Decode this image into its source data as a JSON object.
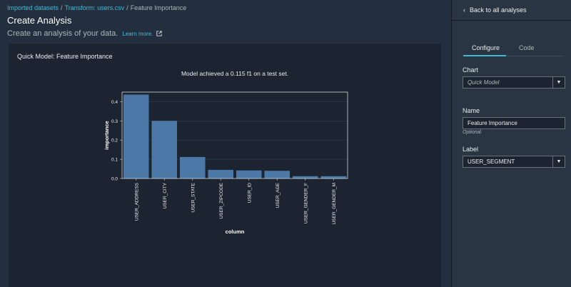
{
  "breadcrumb": {
    "items": [
      "Imported datasets",
      "Transform: users.csv",
      "Feature Importance"
    ],
    "separator": "/"
  },
  "header": {
    "title": "Create Analysis",
    "subtitle": "Create an analysis of your data.",
    "learn_more": "Learn more."
  },
  "panel": {
    "title": "Quick Model: Feature Importance"
  },
  "chart_data": {
    "type": "bar",
    "title": "Model achieved a 0.115 f1 on a test set.",
    "xlabel": "column",
    "ylabel": "importance",
    "categories": [
      "USER_ADDRESS",
      "USER_CITY",
      "USER_STATE",
      "USER_ZIPCODE",
      "USER_ID",
      "USER_AGE",
      "USER_GENDER_F",
      "USER_GENDER_M"
    ],
    "values": [
      0.437,
      0.3,
      0.112,
      0.045,
      0.042,
      0.04,
      0.012,
      0.012
    ],
    "yticks": [
      "0.0",
      "0.1",
      "0.2",
      "0.3",
      "0.4"
    ],
    "ylim": [
      0,
      0.45
    ],
    "bar_color": "#4c78a8",
    "grid": true
  },
  "sidebar": {
    "back_label": "Back to all analyses",
    "tabs": [
      {
        "label": "Configure",
        "active": true
      },
      {
        "label": "Code",
        "active": false
      }
    ],
    "chart_label": "Chart",
    "chart_value": "Quick Model",
    "name_label": "Name",
    "name_value": "Feature Importance",
    "name_hint": "Optional",
    "label_label": "Label",
    "label_value": "USER_SEGMENT"
  },
  "colors": {
    "accent": "#44b9d6",
    "background": "#232f3e",
    "panel": "#1b2430",
    "sidebar": "#2a3544"
  }
}
